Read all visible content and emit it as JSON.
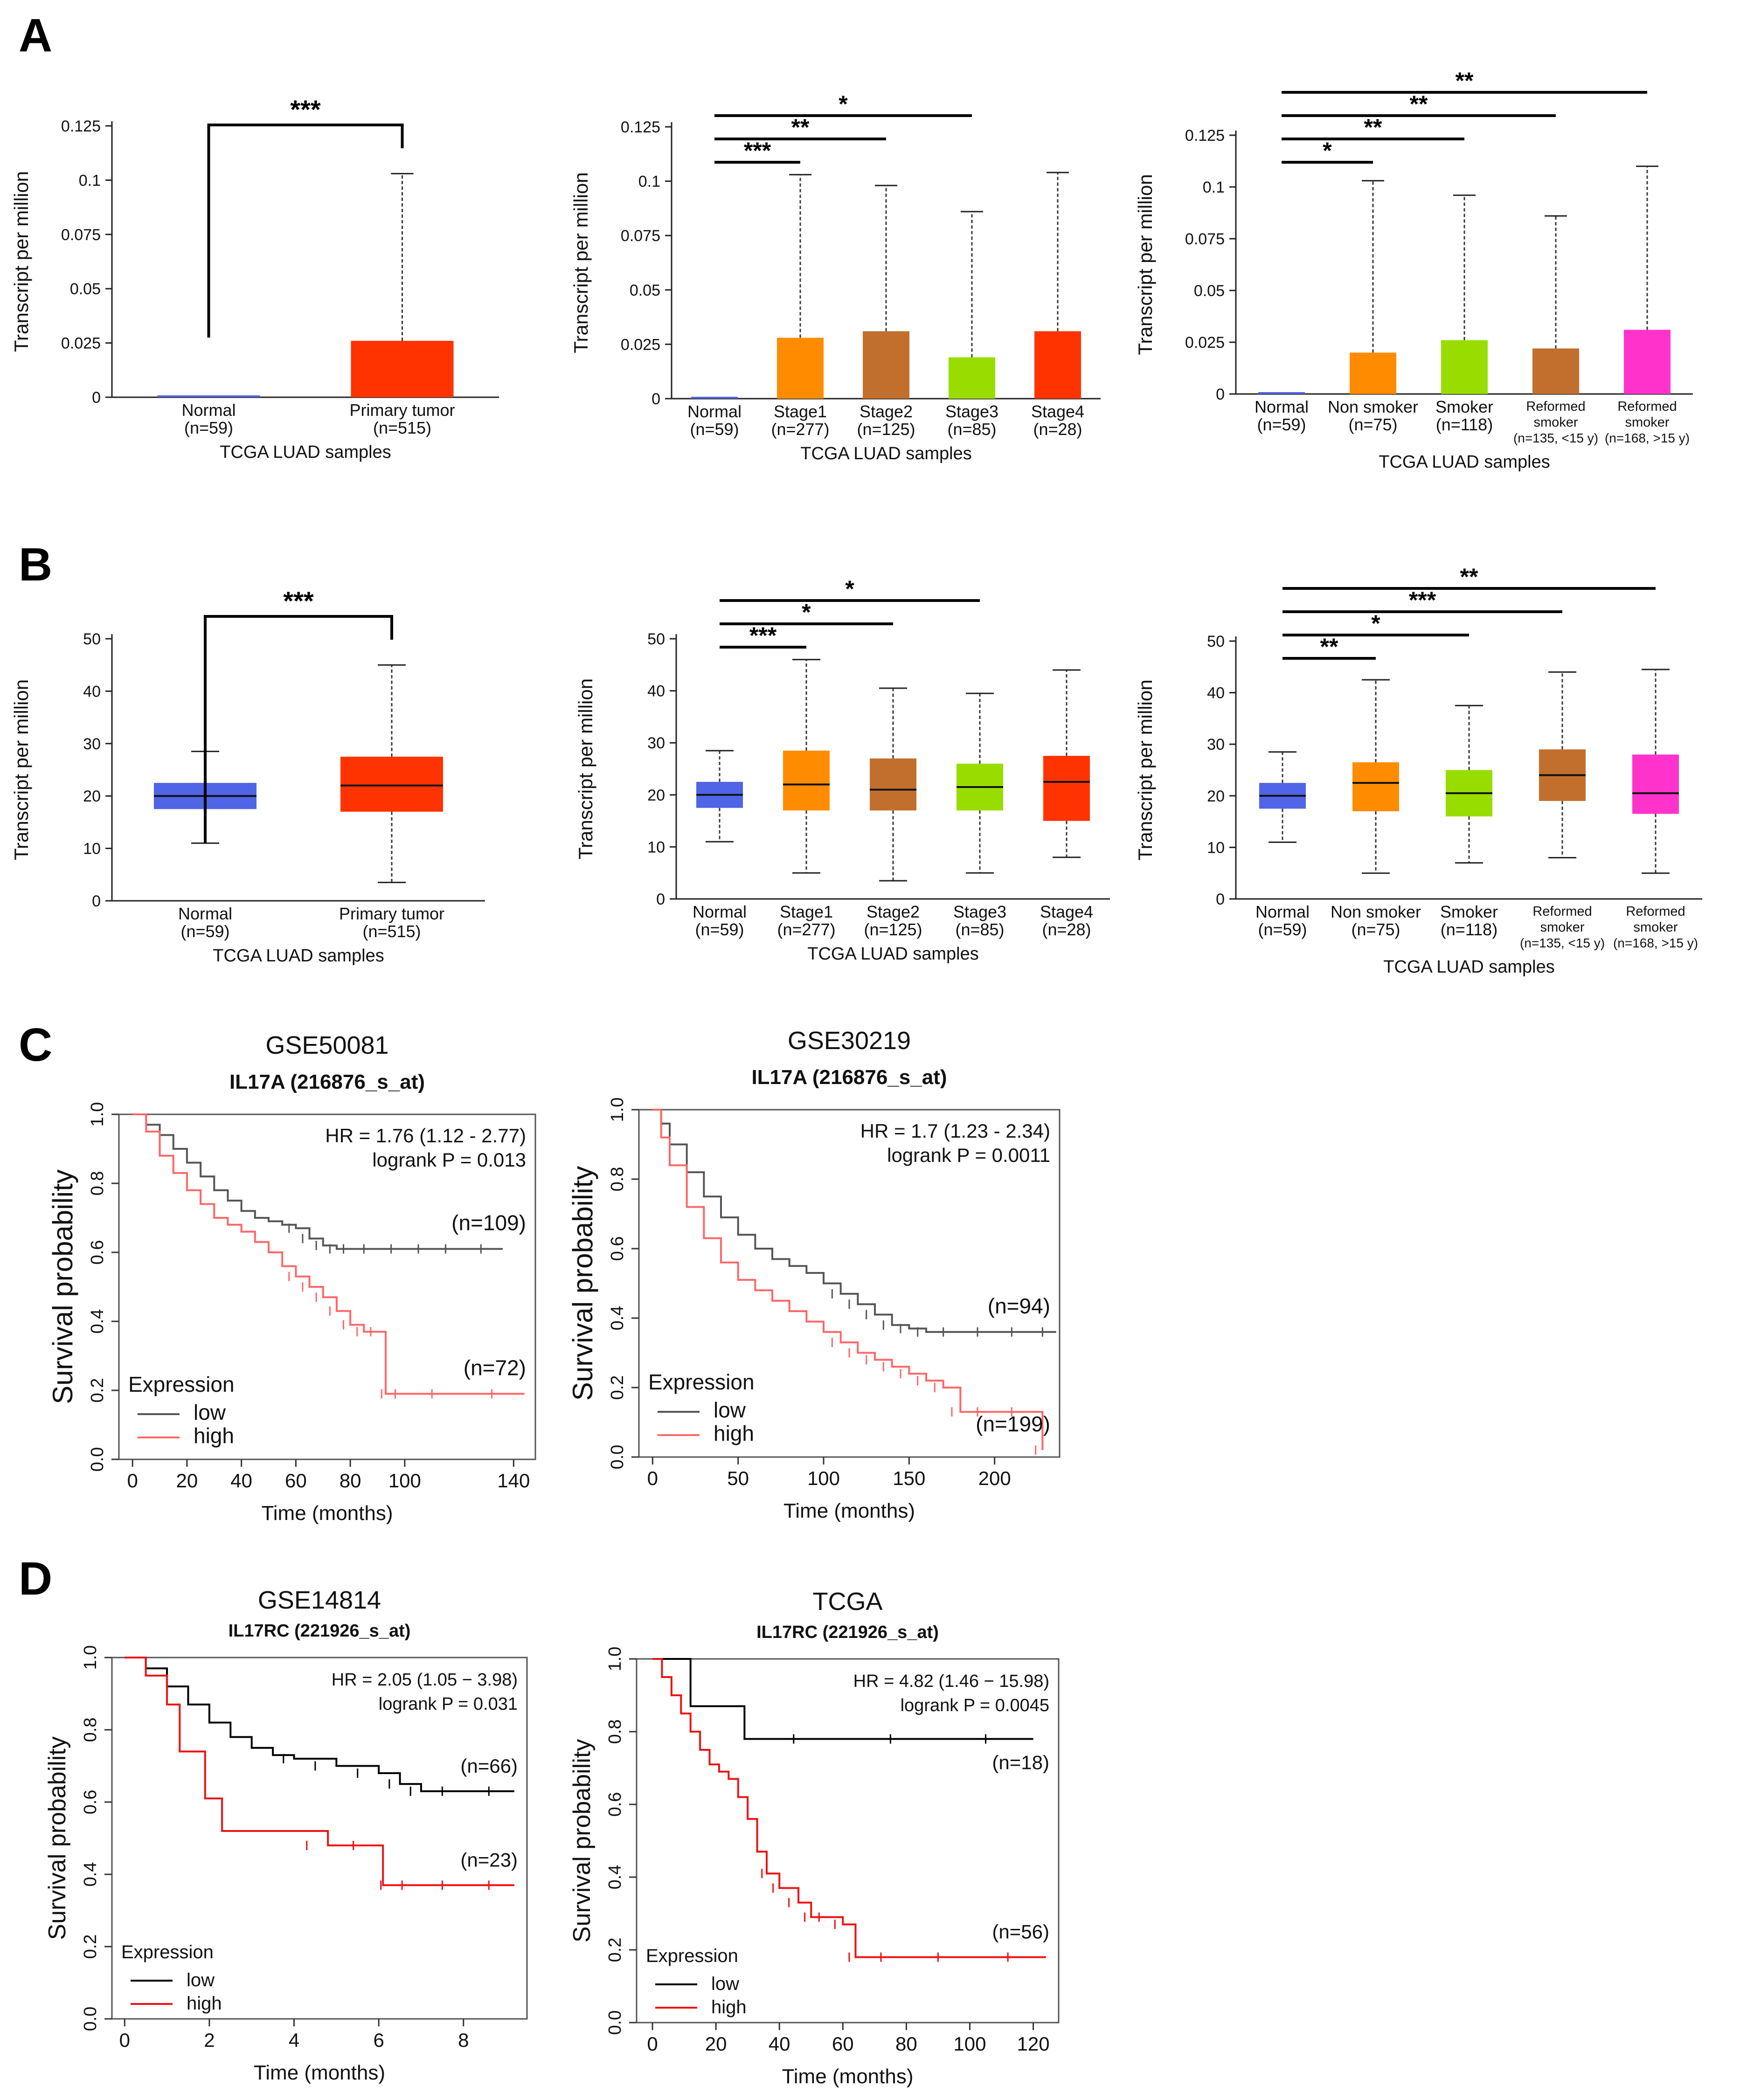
{
  "panel_labels": [
    "A",
    "B",
    "C",
    "D"
  ],
  "colors": {
    "normal": "#4f64e6",
    "tumor": "#ff3300",
    "stage1": "#ff8c00",
    "stage2": "#c26f2e",
    "stage3": "#99dd00",
    "stage4": "#ff3300",
    "nonsmoker": "#ff8c00",
    "smoker": "#99dd00",
    "reformed1": "#c26f2e",
    "reformed2": "#ff33cc",
    "low": "#555555",
    "high": "#ff6666",
    "low_d": "#000000",
    "high_d": "#ee1111"
  },
  "chart_data": [
    {
      "id": "A1",
      "type": "bar",
      "panel": "A",
      "ylabel": "Transcript per million",
      "xlabel": "TCGA LUAD samples",
      "ylim": [
        0,
        0.125
      ],
      "yticks": [
        0,
        0.025,
        0.05,
        0.075,
        0.1,
        0.125
      ],
      "ytick_labels": [
        "0",
        "0.025",
        "0.05",
        "0.075",
        "0.1",
        "0.125"
      ],
      "categories": [
        {
          "name": "Normal",
          "n": "(n=59)",
          "value": 0.0,
          "whisker": 0.0,
          "color": "#4f64e6"
        },
        {
          "name": "Primary tumor",
          "n": "(n=515)",
          "value": 0.026,
          "whisker": 0.103,
          "color": "#ff3300"
        }
      ],
      "significance": [
        {
          "label": "***",
          "from": 0,
          "to": 1,
          "bracket": true
        }
      ]
    },
    {
      "id": "A2",
      "type": "bar",
      "panel": "A",
      "ylabel": "Transcript per million",
      "xlabel": "TCGA LUAD samples",
      "ylim": [
        0,
        0.125
      ],
      "yticks": [
        0,
        0.025,
        0.05,
        0.075,
        0.1,
        0.125
      ],
      "ytick_labels": [
        "0",
        "0.025",
        "0.05",
        "0.075",
        "0.1",
        "0.125"
      ],
      "categories": [
        {
          "name": "Normal",
          "n": "(n=59)",
          "value": 0.0,
          "whisker": 0.0,
          "color": "#4f64e6"
        },
        {
          "name": "Stage1",
          "n": "(n=277)",
          "value": 0.028,
          "whisker": 0.103,
          "color": "#ff8c00"
        },
        {
          "name": "Stage2",
          "n": "(n=125)",
          "value": 0.031,
          "whisker": 0.098,
          "color": "#c26f2e"
        },
        {
          "name": "Stage3",
          "n": "(n=85)",
          "value": 0.019,
          "whisker": 0.086,
          "color": "#99dd00"
        },
        {
          "name": "Stage4",
          "n": "(n=28)",
          "value": 0.031,
          "whisker": 0.104,
          "color": "#ff3300"
        }
      ],
      "significance": [
        {
          "label": "***",
          "from": 0,
          "to": 1
        },
        {
          "label": "**",
          "from": 0,
          "to": 2
        },
        {
          "label": "*",
          "from": 0,
          "to": 3
        }
      ]
    },
    {
      "id": "A3",
      "type": "bar",
      "panel": "A",
      "ylabel": "Transcript per million",
      "xlabel": "TCGA LUAD samples",
      "ylim": [
        0,
        0.125
      ],
      "yticks": [
        0,
        0.025,
        0.05,
        0.075,
        0.1,
        0.125
      ],
      "ytick_labels": [
        "0",
        "0.025",
        "0.05",
        "0.075",
        "0.1",
        "0.125"
      ],
      "categories": [
        {
          "name": "Normal",
          "n": "(n=59)",
          "value": 0.0,
          "whisker": 0.0,
          "color": "#4f64e6"
        },
        {
          "name": "Non smoker",
          "n": "(n=75)",
          "value": 0.02,
          "whisker": 0.103,
          "color": "#ff8c00"
        },
        {
          "name": "Smoker",
          "n": "(n=118)",
          "value": 0.026,
          "whisker": 0.096,
          "color": "#99dd00"
        },
        {
          "name": "Reformed smoker",
          "n": "(n=135, <15 y)",
          "value": 0.022,
          "whisker": 0.086,
          "color": "#c26f2e",
          "small": true
        },
        {
          "name": "Reformed smoker",
          "n": "(n=168, >15 y)",
          "value": 0.031,
          "whisker": 0.11,
          "color": "#ff33cc",
          "small": true
        }
      ],
      "significance": [
        {
          "label": "*",
          "from": 0,
          "to": 1
        },
        {
          "label": "**",
          "from": 0,
          "to": 2
        },
        {
          "label": "**",
          "from": 0,
          "to": 3
        },
        {
          "label": "**",
          "from": 0,
          "to": 4
        }
      ]
    },
    {
      "id": "B1",
      "type": "box",
      "panel": "B",
      "ylabel": "Transcript per million",
      "xlabel": "TCGA LUAD samples",
      "ylim": [
        0,
        50
      ],
      "yticks": [
        0,
        10,
        20,
        30,
        40,
        50
      ],
      "ytick_labels": [
        "0",
        "10",
        "20",
        "30",
        "40",
        "50"
      ],
      "categories": [
        {
          "name": "Normal",
          "n": "(n=59)",
          "min": 11,
          "q1": 17.5,
          "median": 20,
          "q3": 22.5,
          "max": 28.5,
          "color": "#4f64e6"
        },
        {
          "name": "Primary tumor",
          "n": "(n=515)",
          "min": 3.5,
          "q1": 17,
          "median": 22,
          "q3": 27.5,
          "max": 45,
          "color": "#ff3300"
        }
      ],
      "significance": [
        {
          "label": "***",
          "from": 0,
          "to": 1,
          "bracket": true
        }
      ]
    },
    {
      "id": "B2",
      "type": "box",
      "panel": "B",
      "ylabel": "Transcript per million",
      "xlabel": "TCGA LUAD samples",
      "ylim": [
        0,
        50
      ],
      "yticks": [
        0,
        10,
        20,
        30,
        40,
        50
      ],
      "ytick_labels": [
        "0",
        "10",
        "20",
        "30",
        "40",
        "50"
      ],
      "categories": [
        {
          "name": "Normal",
          "n": "(n=59)",
          "min": 11,
          "q1": 17.5,
          "median": 20,
          "q3": 22.5,
          "max": 28.5,
          "color": "#4f64e6"
        },
        {
          "name": "Stage1",
          "n": "(n=277)",
          "min": 5,
          "q1": 17,
          "median": 22,
          "q3": 28.5,
          "max": 46,
          "color": "#ff8c00"
        },
        {
          "name": "Stage2",
          "n": "(n=125)",
          "min": 3.5,
          "q1": 17,
          "median": 21,
          "q3": 27,
          "max": 40.5,
          "color": "#c26f2e"
        },
        {
          "name": "Stage3",
          "n": "(n=85)",
          "min": 5,
          "q1": 17,
          "median": 21.5,
          "q3": 26,
          "max": 39.5,
          "color": "#99dd00"
        },
        {
          "name": "Stage4",
          "n": "(n=28)",
          "min": 8,
          "q1": 15,
          "median": 22.5,
          "q3": 27.5,
          "max": 44,
          "color": "#ff3300"
        }
      ],
      "significance": [
        {
          "label": "***",
          "from": 0,
          "to": 1
        },
        {
          "label": "*",
          "from": 0,
          "to": 2
        },
        {
          "label": "*",
          "from": 0,
          "to": 3
        }
      ]
    },
    {
      "id": "B3",
      "type": "box",
      "panel": "B",
      "ylabel": "Transcript per million",
      "xlabel": "TCGA LUAD samples",
      "ylim": [
        0,
        50
      ],
      "yticks": [
        0,
        10,
        20,
        30,
        40,
        50
      ],
      "ytick_labels": [
        "0",
        "10",
        "20",
        "30",
        "40",
        "50"
      ],
      "categories": [
        {
          "name": "Normal",
          "n": "(n=59)",
          "min": 11,
          "q1": 17.5,
          "median": 20,
          "q3": 22.5,
          "max": 28.5,
          "color": "#4f64e6"
        },
        {
          "name": "Non smoker",
          "n": "(n=75)",
          "min": 5,
          "q1": 17,
          "median": 22.5,
          "q3": 26.5,
          "max": 42.5,
          "color": "#ff8c00"
        },
        {
          "name": "Smoker",
          "n": "(n=118)",
          "min": 7,
          "q1": 16,
          "median": 20.5,
          "q3": 25,
          "max": 37.5,
          "color": "#99dd00"
        },
        {
          "name": "Reformed smoker",
          "n": "(n=135, <15 y)",
          "min": 8,
          "q1": 19,
          "median": 24,
          "q3": 29,
          "max": 44,
          "color": "#c26f2e",
          "small": true
        },
        {
          "name": "Reformed smoker",
          "n": "(n=168, >15 y)",
          "min": 5,
          "q1": 16.5,
          "median": 20.5,
          "q3": 28,
          "max": 44.5,
          "color": "#ff33cc",
          "small": true
        }
      ],
      "significance": [
        {
          "label": "**",
          "from": 0,
          "to": 1
        },
        {
          "label": "*",
          "from": 0,
          "to": 2
        },
        {
          "label": "***",
          "from": 0,
          "to": 3
        },
        {
          "label": "**",
          "from": 0,
          "to": 4
        }
      ]
    },
    {
      "id": "C1",
      "type": "line",
      "panel": "C",
      "title": "GSE50081",
      "subtitle": "IL17A (216876_s_at)",
      "ylabel": "Survival probability",
      "xlabel": "Time (months)",
      "xlim": [
        -5,
        148
      ],
      "ylim": [
        0,
        1
      ],
      "xticks": [
        0,
        20,
        40,
        60,
        80,
        100,
        140
      ],
      "yticks": [
        0,
        0.2,
        0.4,
        0.6,
        0.8,
        1
      ],
      "ytick_labels": [
        "0.0",
        "0.2",
        "0.4",
        "0.6",
        "0.8",
        "1.0"
      ],
      "hr_text": "HR = 1.76 (1.12 - 2.77)",
      "p_text": "logrank P = 0.013",
      "legend_title": "Expression",
      "series": [
        {
          "name": "low",
          "n_label": "(n=109)",
          "color": "#555555",
          "x": [
            0,
            5,
            10,
            15,
            20,
            25,
            30,
            35,
            40,
            45,
            50,
            55,
            60,
            65,
            70,
            75,
            80,
            90,
            100,
            110,
            120,
            136
          ],
          "y": [
            1.0,
            0.97,
            0.94,
            0.9,
            0.86,
            0.82,
            0.78,
            0.75,
            0.72,
            0.7,
            0.69,
            0.68,
            0.67,
            0.64,
            0.62,
            0.61,
            0.61,
            0.61,
            0.61,
            0.61,
            0.61,
            0.61
          ]
        },
        {
          "name": "high",
          "n_label": "(n=72)",
          "color": "#ff6666",
          "x": [
            0,
            5,
            10,
            15,
            20,
            25,
            30,
            35,
            40,
            45,
            50,
            55,
            60,
            65,
            70,
            75,
            80,
            85,
            90,
            93,
            100,
            120,
            144
          ],
          "y": [
            1.0,
            0.95,
            0.88,
            0.83,
            0.78,
            0.74,
            0.7,
            0.68,
            0.66,
            0.63,
            0.6,
            0.56,
            0.53,
            0.5,
            0.47,
            0.43,
            0.39,
            0.37,
            0.37,
            0.19,
            0.19,
            0.19,
            0.19
          ]
        }
      ]
    },
    {
      "id": "C2",
      "type": "line",
      "panel": "C",
      "title": "GSE30219",
      "subtitle": "IL17A (216876_s_at)",
      "ylabel": "Survival probability",
      "xlabel": "Time (months)",
      "xlim": [
        -8,
        238
      ],
      "ylim": [
        0,
        1
      ],
      "xticks": [
        0,
        50,
        100,
        150,
        200
      ],
      "yticks": [
        0,
        0.2,
        0.4,
        0.6,
        0.8,
        1
      ],
      "ytick_labels": [
        "0.0",
        "0.2",
        "0.4",
        "0.6",
        "0.8",
        "1.0"
      ],
      "hr_text": "HR = 1.7 (1.23 - 2.34)",
      "p_text": "logrank P = 0.0011",
      "legend_title": "Expression",
      "series": [
        {
          "name": "low",
          "n_label": "(n=94)",
          "color": "#555555",
          "x": [
            0,
            5,
            10,
            20,
            30,
            40,
            50,
            60,
            70,
            80,
            90,
            100,
            110,
            120,
            130,
            140,
            150,
            160,
            180,
            200,
            220,
            236
          ],
          "y": [
            1.0,
            0.96,
            0.9,
            0.82,
            0.75,
            0.69,
            0.64,
            0.6,
            0.57,
            0.55,
            0.53,
            0.5,
            0.47,
            0.44,
            0.41,
            0.38,
            0.37,
            0.36,
            0.36,
            0.36,
            0.36,
            0.36
          ]
        },
        {
          "name": "high",
          "n_label": "(n=199)",
          "color": "#ff6666",
          "x": [
            0,
            5,
            10,
            20,
            30,
            40,
            50,
            60,
            70,
            80,
            90,
            100,
            110,
            120,
            130,
            140,
            150,
            160,
            170,
            180,
            200,
            220,
            228
          ],
          "y": [
            1.0,
            0.92,
            0.84,
            0.72,
            0.63,
            0.56,
            0.51,
            0.48,
            0.45,
            0.42,
            0.39,
            0.36,
            0.33,
            0.3,
            0.28,
            0.26,
            0.24,
            0.22,
            0.2,
            0.13,
            0.13,
            0.13,
            0.02
          ]
        }
      ]
    },
    {
      "id": "D1",
      "type": "line",
      "panel": "D",
      "title": "GSE14814",
      "subtitle": "IL17RC (221926_s_at)",
      "ylabel": "Survival probability",
      "xlabel": "Time (months)",
      "xlim": [
        -0.3,
        9.5
      ],
      "ylim": [
        0,
        1
      ],
      "xticks": [
        0,
        2,
        4,
        6,
        8
      ],
      "yticks": [
        0,
        0.2,
        0.4,
        0.6,
        0.8,
        1
      ],
      "ytick_labels": [
        "0.0",
        "0.2",
        "0.4",
        "0.6",
        "0.8",
        "1.0"
      ],
      "hr_text": "HR = 2.05 (1.05 − 3.98)",
      "p_text": "logrank P = 0.031",
      "legend_title": "Expression",
      "series": [
        {
          "name": "low",
          "n_label": "(n=66)",
          "color": "#000000",
          "x": [
            0,
            0.5,
            1,
            1.5,
            2,
            2.5,
            3,
            3.5,
            4,
            5,
            6,
            6.5,
            7,
            8,
            9.2
          ],
          "y": [
            1.0,
            0.97,
            0.92,
            0.87,
            0.82,
            0.78,
            0.75,
            0.73,
            0.72,
            0.7,
            0.68,
            0.65,
            0.63,
            0.63,
            0.63
          ]
        },
        {
          "name": "high",
          "n_label": "(n=23)",
          "color": "#ee1111",
          "x": [
            0,
            0.5,
            1,
            1.3,
            1.9,
            2.3,
            3,
            3.8,
            4.8,
            6,
            6.1,
            7,
            8,
            9.2
          ],
          "y": [
            1.0,
            0.95,
            0.87,
            0.74,
            0.61,
            0.52,
            0.52,
            0.52,
            0.48,
            0.48,
            0.37,
            0.37,
            0.37,
            0.37
          ]
        }
      ]
    },
    {
      "id": "D2",
      "type": "line",
      "panel": "D",
      "title": "TCGA",
      "subtitle": "IL17RC (221926_s_at)",
      "ylabel": "Survival probability",
      "xlabel": "Time (months)",
      "xlim": [
        -5,
        128
      ],
      "ylim": [
        0,
        1
      ],
      "xticks": [
        0,
        20,
        40,
        60,
        80,
        100,
        120
      ],
      "yticks": [
        0,
        0.2,
        0.4,
        0.6,
        0.8,
        1
      ],
      "ytick_labels": [
        "0.0",
        "0.2",
        "0.4",
        "0.6",
        "0.8",
        "1.0"
      ],
      "hr_text": "HR = 4.82 (1.46 − 15.98)",
      "p_text": "logrank P = 0.0045",
      "legend_title": "Expression",
      "series": [
        {
          "name": "low",
          "n_label": "(n=18)",
          "color": "#000000",
          "x": [
            0,
            11,
            12,
            28,
            29,
            60,
            90,
            120
          ],
          "y": [
            1.0,
            1.0,
            0.87,
            0.87,
            0.78,
            0.78,
            0.78,
            0.78
          ]
        },
        {
          "name": "high",
          "n_label": "(n=56)",
          "color": "#ee1111",
          "x": [
            0,
            3,
            6,
            9,
            12,
            15,
            18,
            21,
            24,
            27,
            30,
            33,
            36,
            40,
            46,
            50,
            55,
            60,
            64,
            80,
            100,
            124
          ],
          "y": [
            1.0,
            0.95,
            0.9,
            0.85,
            0.8,
            0.75,
            0.71,
            0.69,
            0.67,
            0.62,
            0.56,
            0.47,
            0.41,
            0.37,
            0.33,
            0.29,
            0.29,
            0.27,
            0.18,
            0.18,
            0.18,
            0.18
          ]
        }
      ]
    }
  ]
}
